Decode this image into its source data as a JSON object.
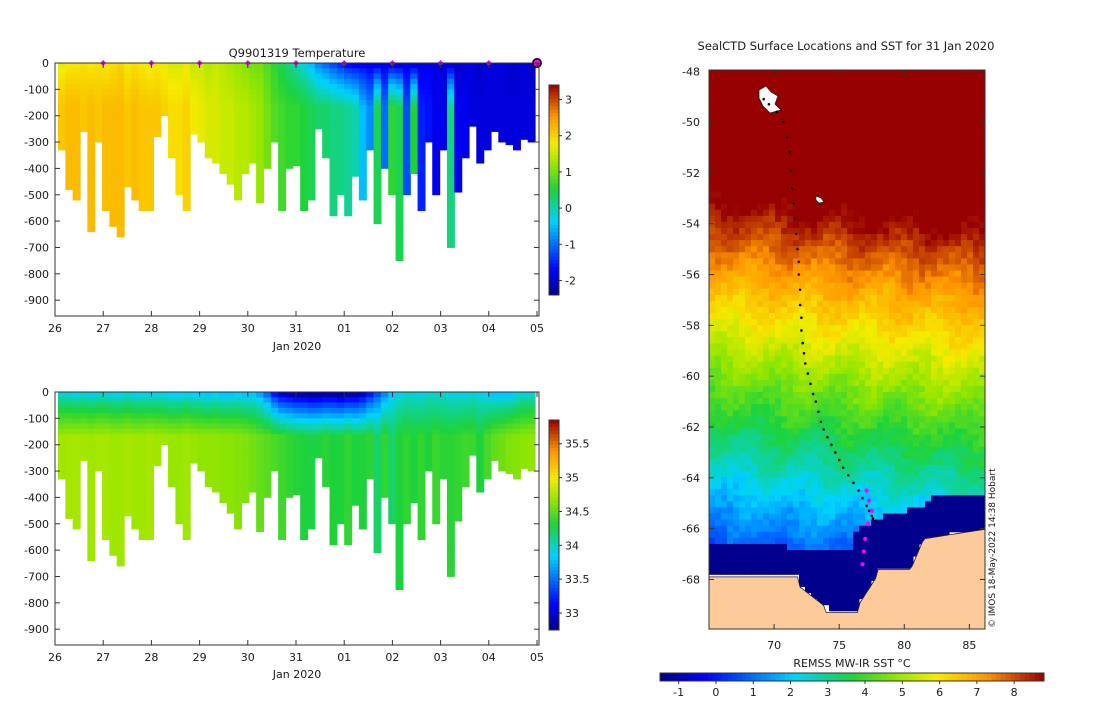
{
  "chart_data": [
    {
      "type": "heatmap",
      "title": "Q9901319  Temperature",
      "xlabel": "Jan 2020",
      "ylabel": "",
      "x_ticks": [
        "26",
        "27",
        "28",
        "29",
        "30",
        "31",
        "01",
        "02",
        "03",
        "04",
        "05"
      ],
      "y_ticks": [
        "0",
        "-100",
        "-200",
        "-300",
        "-400",
        "-500",
        "-600",
        "-700",
        "-800",
        "-900"
      ],
      "ylim": [
        -960,
        0
      ],
      "colorbar": {
        "min": -2.4,
        "max": 3.4,
        "ticks": [
          "3",
          "2",
          "1",
          "0",
          "-1",
          "-2"
        ],
        "tick_values": [
          3,
          2,
          1,
          0,
          -1,
          -2
        ]
      },
      "profile_max_depth": [
        330,
        480,
        520,
        260,
        640,
        300,
        560,
        620,
        660,
        470,
        520,
        560,
        560,
        280,
        200,
        360,
        500,
        560,
        270,
        300,
        360,
        380,
        420,
        460,
        520,
        420,
        380,
        530,
        400,
        300,
        560,
        400,
        390,
        560,
        520,
        250,
        360,
        580,
        500,
        580,
        430,
        520,
        330,
        610,
        400,
        500,
        750,
        500,
        420,
        560,
        300,
        500,
        330,
        700,
        490,
        360,
        240,
        380,
        330,
        260,
        300,
        310,
        330,
        290,
        300
      ],
      "surface_temp": [
        1.7,
        1.8,
        1.8,
        1.9,
        1.8,
        1.9,
        1.8,
        1.9,
        2.0,
        1.8,
        1.9,
        1.8,
        1.7,
        1.8,
        1.7,
        1.6,
        1.6,
        1.7,
        1.5,
        1.5,
        1.4,
        1.5,
        1.4,
        1.3,
        1.2,
        1.1,
        1.0,
        1.0,
        0.8,
        0.6,
        0.4,
        0.2,
        0.0,
        -0.2,
        -0.5,
        -0.8,
        -1.0,
        -1.2,
        -1.4,
        -1.6,
        -1.7,
        -1.7,
        -1.8,
        -1.8,
        -1.8,
        -1.8,
        -1.9,
        -1.8,
        -1.9,
        -1.9,
        -1.8,
        -1.9,
        -1.9,
        -1.9,
        -2.0,
        -1.9,
        -1.9,
        -2.0,
        -1.9,
        -1.9,
        -1.9,
        -2.0,
        -2.0,
        -1.9,
        -2.0
      ],
      "deep_temp": [
        2.1,
        2.2,
        2.2,
        2.1,
        2.2,
        2.1,
        2.2,
        2.2,
        2.2,
        2.1,
        2.2,
        2.1,
        2.1,
        2.1,
        2.0,
        1.9,
        1.9,
        2.0,
        1.8,
        1.7,
        1.6,
        1.6,
        1.5,
        1.5,
        1.4,
        1.4,
        1.3,
        1.2,
        1.0,
        0.8,
        0.7,
        0.6,
        0.6,
        0.5,
        0.4,
        0.3,
        0.3,
        0.2,
        0.2,
        0.1,
        0.0,
        -0.5,
        -0.8,
        0.4,
        -1.0,
        0.6,
        0.4,
        -1.2,
        0.5,
        -1.5,
        -1.6,
        -1.8,
        -1.8,
        0.2,
        -1.8,
        -1.8,
        -1.9,
        -1.9,
        -1.9,
        -1.9,
        -1.9,
        -1.9,
        -1.9,
        -1.9,
        -1.9
      ],
      "markers_day": [
        27,
        28,
        29,
        30,
        31,
        32,
        33,
        34,
        35
      ],
      "marker_color": "#ff00ff",
      "last_profile_marker_day": 36
    },
    {
      "type": "heatmap",
      "title": "",
      "xlabel": "Jan 2020",
      "ylabel": "",
      "x_ticks": [
        "26",
        "27",
        "28",
        "29",
        "30",
        "31",
        "01",
        "02",
        "03",
        "04",
        "05"
      ],
      "y_ticks": [
        "0",
        "-100",
        "-200",
        "-300",
        "-400",
        "-500",
        "-600",
        "-700",
        "-800",
        "-900"
      ],
      "ylim": [
        -960,
        0
      ],
      "colorbar": {
        "min": 32.75,
        "max": 35.85,
        "ticks": [
          "35.5",
          "35",
          "34.5",
          "34",
          "33.5",
          "33"
        ],
        "tick_values": [
          35.5,
          35,
          34.5,
          34,
          33.5,
          33
        ]
      },
      "profile_max_depth": [
        330,
        480,
        520,
        260,
        640,
        300,
        560,
        620,
        660,
        470,
        520,
        560,
        560,
        280,
        200,
        360,
        500,
        560,
        270,
        300,
        360,
        380,
        420,
        460,
        520,
        420,
        380,
        530,
        400,
        300,
        560,
        400,
        390,
        560,
        520,
        250,
        360,
        580,
        500,
        580,
        430,
        520,
        330,
        610,
        400,
        500,
        750,
        500,
        420,
        560,
        300,
        500,
        330,
        700,
        490,
        360,
        240,
        380,
        330,
        260,
        300,
        310,
        330,
        290,
        300
      ],
      "surface_salinity": [
        33.95,
        33.95,
        33.9,
        33.95,
        33.9,
        33.95,
        33.95,
        33.9,
        33.9,
        33.95,
        33.9,
        33.9,
        33.9,
        33.9,
        33.9,
        33.85,
        33.85,
        33.9,
        33.85,
        33.85,
        33.8,
        33.85,
        33.8,
        33.8,
        33.85,
        33.8,
        33.8,
        33.7,
        33.5,
        33.2,
        33.0,
        32.95,
        32.9,
        32.9,
        32.85,
        32.85,
        32.9,
        32.9,
        32.85,
        32.9,
        32.9,
        33.0,
        33.2,
        33.4,
        33.6,
        33.8,
        33.9,
        33.95,
        33.95,
        33.9,
        34.0,
        33.95,
        33.95,
        33.9,
        33.9,
        33.9,
        33.95,
        33.9,
        33.85,
        33.8,
        33.8,
        33.8,
        33.9,
        33.95,
        33.95
      ],
      "deep_salinity": [
        34.7,
        34.72,
        34.72,
        34.72,
        34.7,
        34.72,
        34.72,
        34.7,
        34.7,
        34.72,
        34.7,
        34.7,
        34.72,
        34.7,
        34.7,
        34.68,
        34.68,
        34.7,
        34.68,
        34.66,
        34.66,
        34.66,
        34.64,
        34.64,
        34.62,
        34.6,
        34.56,
        34.52,
        34.48,
        34.44,
        34.4,
        34.36,
        34.32,
        34.3,
        34.28,
        34.3,
        34.34,
        34.3,
        34.3,
        34.36,
        34.3,
        34.3,
        34.34,
        34.2,
        34.36,
        34.2,
        34.3,
        34.36,
        34.3,
        34.36,
        34.3,
        34.38,
        34.34,
        34.34,
        34.36,
        34.4,
        34.38,
        34.3,
        34.42,
        34.5,
        34.55,
        34.6,
        34.62,
        34.64,
        34.66
      ]
    },
    {
      "type": "heatmap",
      "title": "SealCTD Surface Locations and SST for 31 Jan 2020",
      "xlabel": "",
      "ylabel": "",
      "x_ticks": [
        "70",
        "75",
        "80",
        "85"
      ],
      "x_tick_values": [
        70,
        75,
        80,
        85
      ],
      "xlim": [
        65.0,
        86.2
      ],
      "y_ticks": [
        "-48",
        "-50",
        "-52",
        "-54",
        "-56",
        "-58",
        "-60",
        "-62",
        "-64",
        "-66",
        "-68"
      ],
      "y_tick_values": [
        -48,
        -50,
        -52,
        -54,
        -56,
        -58,
        -60,
        -62,
        -64,
        -66,
        -68
      ],
      "ylim": [
        -69.95,
        -47.95
      ],
      "colorbar": {
        "label": "REMSS MW-IR SST °C",
        "min": -1.5,
        "max": 8.8,
        "ticks": [
          "-1",
          "0",
          "1",
          "2",
          "3",
          "4",
          "5",
          "6",
          "7",
          "8"
        ],
        "tick_values": [
          -1,
          0,
          1,
          2,
          3,
          4,
          5,
          6,
          7,
          8
        ]
      },
      "track_lon": [
        69.2,
        69.6,
        70.2,
        70.7,
        71.0,
        71.2,
        71.3,
        71.4,
        71.5,
        71.6,
        71.7,
        71.8,
        71.9,
        71.9,
        72.0,
        72.0,
        72.1,
        72.1,
        72.2,
        72.3,
        72.4,
        72.6,
        72.8,
        73.0,
        73.2,
        73.4,
        73.6,
        73.8,
        74.1,
        74.4,
        74.7,
        75.0,
        75.3,
        75.7,
        76.1,
        76.5,
        76.8,
        77.1,
        77.3,
        77.5,
        77.6,
        77.8
      ],
      "track_lat": [
        -49.1,
        -49.3,
        -49.6,
        -50.0,
        -50.6,
        -51.2,
        -51.9,
        -52.6,
        -53.2,
        -53.8,
        -54.4,
        -55.0,
        -55.5,
        -56.0,
        -56.6,
        -57.2,
        -57.7,
        -58.2,
        -58.7,
        -59.1,
        -59.5,
        -59.9,
        -60.3,
        -60.7,
        -61.0,
        -61.4,
        -61.8,
        -62.1,
        -62.4,
        -62.7,
        -63.0,
        -63.3,
        -63.6,
        -63.9,
        -64.2,
        -64.5,
        -64.8,
        -65.1,
        -65.3,
        -65.5,
        -65.6,
        -65.7
      ],
      "recent_lon": [
        77.1,
        77.3,
        77.5,
        77.2,
        77.0,
        76.9,
        76.8
      ],
      "recent_lat": [
        -64.5,
        -64.9,
        -65.3,
        -65.8,
        -66.4,
        -66.9,
        -67.4
      ],
      "track_color": "#000000",
      "recent_color": "#ff00ff",
      "land_color": "#fdcb99",
      "credit": "© IMOS 18-May-2022 14:38 Hobart"
    }
  ]
}
